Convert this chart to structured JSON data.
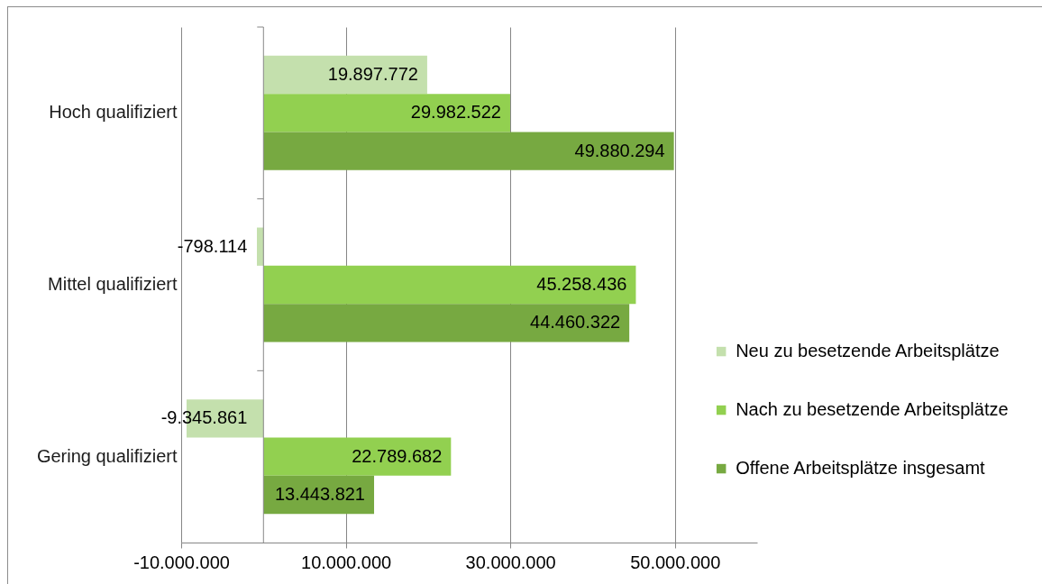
{
  "chart_data": {
    "type": "bar",
    "orientation": "horizontal",
    "categories": [
      "Hoch qualifiziert",
      "Mittel qualifiziert",
      "Gering qualifiziert"
    ],
    "series": [
      {
        "name": "Neu zu besetzende Arbeitsplätze",
        "color": "#c4e0ad",
        "values": [
          19897772,
          -798114,
          -9345861
        ],
        "value_labels": [
          "19.897.772",
          "-798.114",
          "-9.345.861"
        ]
      },
      {
        "name": "Nach zu besetzende Arbeitsplätze",
        "color": "#92d050",
        "values": [
          29982522,
          45258436,
          22789682
        ],
        "value_labels": [
          "29.982.522",
          "45.258.436",
          "22.789.682"
        ]
      },
      {
        "name": "Offene Arbeitsplätze insgesamt",
        "color": "#77a941",
        "values": [
          49880294,
          44460322,
          13443821
        ],
        "value_labels": [
          "49.880.294",
          "44.460.322",
          "13.443.821"
        ]
      }
    ],
    "xlim": [
      -10000000,
      60000000
    ],
    "xticks": [
      {
        "value": -10000000,
        "label": "-10.000.000"
      },
      {
        "value": 10000000,
        "label": "10.000.000"
      },
      {
        "value": 30000000,
        "label": "30.000.000"
      },
      {
        "value": 50000000,
        "label": "50.000.000"
      }
    ],
    "grid": "x",
    "legend": "right"
  }
}
